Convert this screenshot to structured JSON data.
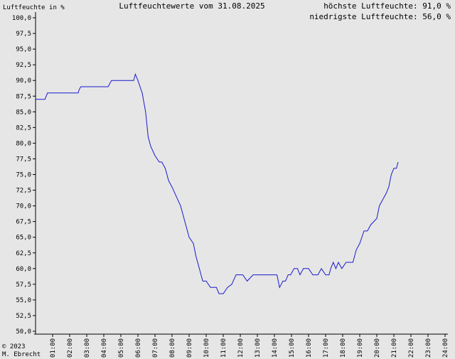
{
  "header": {
    "title": "Luftfeuchtewerte vom 31.08.2025",
    "y_unit_label": "Luftfeuchte in %",
    "max_text": "höchste Luftfeuchte: 91,0 %",
    "min_text": "niedrigste Luftfeuchte: 56,0 %"
  },
  "footer": {
    "copyright": "© 2023",
    "author": "M. Ebrecht"
  },
  "colors": {
    "background": "#e6e6e6",
    "line": "#1a1acc",
    "axis": "#000000"
  },
  "chart_data": {
    "type": "line",
    "title": "Luftfeuchtewerte vom 31.08.2025",
    "ylabel": "Luftfeuchte in %",
    "xlabel": "",
    "ylim": [
      50,
      100
    ],
    "xlim": [
      0,
      24
    ],
    "yticks": [
      50,
      52.5,
      55,
      57.5,
      60,
      62.5,
      65,
      67.5,
      70,
      72.5,
      75,
      77.5,
      80,
      82.5,
      85,
      87.5,
      90,
      92.5,
      95,
      97.5,
      100
    ],
    "ytick_labels": [
      "50,0",
      "52,5",
      "55,0",
      "57,5",
      "60,0",
      "62,5",
      "65,0",
      "67,5",
      "70,0",
      "72,5",
      "75,0",
      "77,5",
      "80,0",
      "82,5",
      "85,0",
      "87,5",
      "90,0",
      "92,5",
      "95,0",
      "97,5",
      "100,0"
    ],
    "xticks": [
      1,
      2,
      3,
      4,
      5,
      6,
      7,
      8,
      9,
      10,
      11,
      12,
      13,
      14,
      15,
      16,
      17,
      18,
      19,
      20,
      21,
      22,
      23,
      24
    ],
    "xtick_labels": [
      "01:00",
      "02:00",
      "03:00",
      "04:00",
      "05:00",
      "06:00",
      "07:00",
      "08:00",
      "09:00",
      "10:00",
      "11:00",
      "12:00",
      "13:00",
      "14:00",
      "15:00",
      "16:00",
      "17:00",
      "18:00",
      "19:00",
      "20:00",
      "21:00",
      "22:00",
      "23:00",
      "24:00"
    ],
    "grid": false,
    "max": 91.0,
    "min": 56.0,
    "series": [
      {
        "x": [
          0,
          0.1,
          0.3,
          0.55,
          0.7,
          1,
          1.5,
          2,
          2.5,
          2.55,
          2.65,
          3,
          3.5,
          4,
          4.25,
          4.35,
          4.45,
          5,
          5.5,
          5.65,
          5.75,
          5.85,
          6,
          6.25,
          6.45,
          6.6,
          6.75,
          7,
          7.25,
          7.4,
          7.6,
          7.8,
          8,
          8.25,
          8.5,
          8.75,
          8.9,
          9,
          9.25,
          9.4,
          9.6,
          9.8,
          10,
          10.25,
          10.4,
          10.6,
          10.75,
          11,
          11.25,
          11.5,
          11.75,
          12,
          12.15,
          12.4,
          12.75,
          13,
          13.25,
          13.5,
          13.75,
          13.9,
          14.15,
          14.3,
          14.5,
          14.65,
          14.8,
          14.95,
          15.15,
          15.35,
          15.5,
          15.7,
          16,
          16.25,
          16.4,
          16.55,
          16.75,
          17,
          17.2,
          17.3,
          17.45,
          17.6,
          17.75,
          17.95,
          18.2,
          18.4,
          18.6,
          18.8,
          19,
          19.25,
          19.45,
          19.65,
          20,
          20.15,
          20.35,
          20.55,
          20.7
        ],
        "values": [
          87,
          87,
          87,
          87,
          88,
          88,
          88,
          88,
          88,
          88.5,
          89,
          89,
          89,
          89,
          89,
          89.5,
          90,
          90,
          90,
          90,
          90,
          91,
          90,
          88,
          85,
          81,
          79.5,
          78,
          77,
          77,
          76,
          74,
          73,
          71.5,
          70,
          67.5,
          66,
          65,
          64,
          62,
          60,
          58,
          58,
          57,
          57,
          57,
          56,
          56,
          57,
          57.5,
          59,
          59,
          59,
          58,
          59,
          59,
          59,
          59,
          59,
          59,
          59,
          57,
          58,
          58,
          59,
          59,
          60,
          60,
          59,
          60,
          60,
          59,
          59,
          59,
          60,
          59,
          59,
          60,
          61,
          60,
          61,
          60,
          61,
          61,
          61,
          63,
          64,
          66,
          66,
          67,
          68,
          70,
          71,
          72,
          73
        ]
      }
    ],
    "series_tail": {
      "x": [
        20.7,
        20.85,
        21,
        21.15,
        21.25
      ],
      "values": [
        73,
        75,
        76,
        76,
        77
      ]
    }
  }
}
